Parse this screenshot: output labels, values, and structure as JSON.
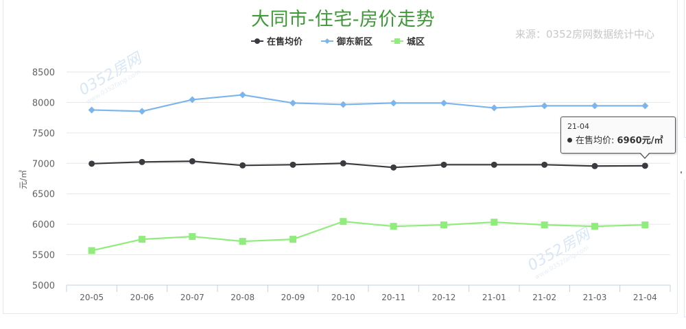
{
  "title": "大同市-住宅-房价走势",
  "source": "来源：0352房网数据统计中心",
  "watermark": {
    "text": "0352房网",
    "sub": "www.0352fang.com"
  },
  "legend": [
    {
      "label": "在售均价",
      "color": "#3a3a3f",
      "marker": "circle"
    },
    {
      "label": "御东新区",
      "color": "#7cb5ec",
      "marker": "diamond"
    },
    {
      "label": "城区",
      "color": "#90ed7d",
      "marker": "square"
    }
  ],
  "tooltip": {
    "date": "21-04",
    "series": "在售均价",
    "sep": ": ",
    "value": "6960元/㎡"
  },
  "chart_data": {
    "type": "line",
    "title": "大同市-住宅-房价走势",
    "subtitle": "来源：0352房网数据统计中心",
    "xlabel": "",
    "ylabel": "元/㎡",
    "ylim": [
      5000,
      8500
    ],
    "yticks": [
      5000,
      5500,
      6000,
      6500,
      7000,
      7500,
      8000,
      8500
    ],
    "grid": true,
    "legend_position": "top",
    "categories": [
      "20-05",
      "20-06",
      "20-07",
      "20-08",
      "20-09",
      "20-10",
      "20-11",
      "20-12",
      "21-01",
      "21-02",
      "21-03",
      "21-04"
    ],
    "series": [
      {
        "name": "在售均价",
        "color": "#3a3a3f",
        "marker": "circle",
        "values": [
          6994,
          7022,
          7034,
          6966,
          6977,
          7000,
          6932,
          6977,
          6977,
          6977,
          6955,
          6960
        ]
      },
      {
        "name": "御东新区",
        "color": "#7cb5ec",
        "marker": "diamond",
        "values": [
          7876,
          7854,
          8045,
          8124,
          7990,
          7966,
          7990,
          7990,
          7910,
          7944,
          7944,
          7944
        ]
      },
      {
        "name": "城区",
        "color": "#90ed7d",
        "marker": "square",
        "values": [
          5567,
          5753,
          5798,
          5719,
          5753,
          6045,
          5966,
          5989,
          6034,
          5989,
          5966,
          5989
        ]
      }
    ],
    "annotations": [
      {
        "type": "tooltip",
        "x": "21-04",
        "series": "在售均价",
        "text": "6960元/㎡"
      }
    ]
  }
}
